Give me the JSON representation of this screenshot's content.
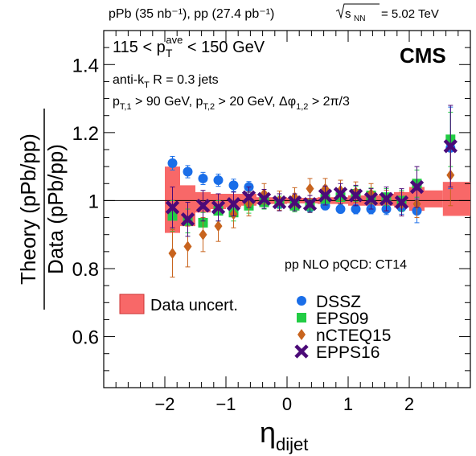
{
  "header": {
    "lumi_left": "pPb (35 nb⁻¹), pp (27.4 pb⁻¹)",
    "energy_sqrt": "s",
    "energy_sub": "NN",
    "energy_value": " = 5.02 TeV"
  },
  "annotations": {
    "experiment": "CMS",
    "kin_range_pre": "115 < p",
    "kin_range_sub": "T",
    "kin_range_sup": "ave",
    "kin_range_post": " < 150 GeV",
    "jets_pre": "anti-k",
    "jets_sub": "T",
    "jets_post": " R = 0.3 jets",
    "cuts_p1": "p",
    "cuts_p1_sub": "T,1",
    "cuts_mid": " > 90 GeV, p",
    "cuts_p2_sub": "T,2",
    "cuts_mid2": " > 20 GeV, Δφ",
    "cuts_phi_sub": "1,2",
    "cuts_end": " > 2π/3",
    "theory_note": "pp NLO pQCD: CT14"
  },
  "chart_data": {
    "type": "scatter",
    "ylabel_top": "Theory (pPb/pp)",
    "ylabel_bottom": "Data (pPb/pp)",
    "xlabel_main": "η",
    "xlabel_sub": "dijet",
    "xlim": [
      -3.0,
      3.0
    ],
    "ylim": [
      0.45,
      1.5
    ],
    "xticks": [
      -2,
      -1,
      0,
      1,
      2
    ],
    "xtick_labels": [
      "−2",
      "−1",
      "0",
      "1",
      "2"
    ],
    "yticks": [
      0.6,
      0.8,
      1.0,
      1.2,
      1.4
    ],
    "ytick_labels": [
      "0.6",
      "0.8",
      "1",
      "1.2",
      "1.4"
    ],
    "reference_line": 1.0,
    "uncertainty": {
      "name": "Data uncert.",
      "color": "#f86868",
      "bins": [
        {
          "x": [
            -2.0,
            -1.75
          ],
          "low": 0.905,
          "high": 1.1
        },
        {
          "x": [
            -1.75,
            -1.5
          ],
          "low": 0.925,
          "high": 1.045
        },
        {
          "x": [
            -1.5,
            -1.25
          ],
          "low": 0.965,
          "high": 1.025
        },
        {
          "x": [
            -1.25,
            -1.0
          ],
          "low": 0.975,
          "high": 1.02
        },
        {
          "x": [
            -1.0,
            -0.75
          ],
          "low": 0.98,
          "high": 1.02
        },
        {
          "x": [
            -0.75,
            -0.5
          ],
          "low": 0.985,
          "high": 1.02
        },
        {
          "x": [
            -0.5,
            -0.25
          ],
          "low": 0.99,
          "high": 1.01
        },
        {
          "x": [
            -0.25,
            0.0
          ],
          "low": 0.99,
          "high": 1.01
        },
        {
          "x": [
            0.0,
            0.25
          ],
          "low": 0.992,
          "high": 1.008
        },
        {
          "x": [
            0.25,
            0.5
          ],
          "low": 0.992,
          "high": 1.008
        },
        {
          "x": [
            0.5,
            0.75
          ],
          "low": 0.99,
          "high": 1.01
        },
        {
          "x": [
            0.75,
            1.0
          ],
          "low": 0.99,
          "high": 1.01
        },
        {
          "x": [
            1.0,
            1.25
          ],
          "low": 0.985,
          "high": 1.015
        },
        {
          "x": [
            1.25,
            1.5
          ],
          "low": 0.985,
          "high": 1.015
        },
        {
          "x": [
            1.5,
            1.75
          ],
          "low": 0.985,
          "high": 1.02
        },
        {
          "x": [
            1.75,
            2.0
          ],
          "low": 0.98,
          "high": 1.025
        },
        {
          "x": [
            2.0,
            2.25
          ],
          "low": 0.97,
          "high": 1.04
        },
        {
          "x": [
            2.25,
            2.55
          ],
          "low": 0.98,
          "high": 1.03
        },
        {
          "x": [
            2.55,
            3.0
          ],
          "low": 0.955,
          "high": 1.055
        }
      ]
    },
    "series": [
      {
        "name": "DSSZ",
        "marker": "circle",
        "color": "#1a6ee8",
        "x": [
          -1.875,
          -1.625,
          -1.375,
          -1.125,
          -0.875,
          -0.625,
          -0.375,
          -0.125,
          0.125,
          0.375,
          0.625,
          0.875,
          1.125,
          1.375,
          1.625,
          1.875,
          2.125,
          2.675
        ],
        "y": [
          1.11,
          1.085,
          1.065,
          1.06,
          1.045,
          1.04,
          1.01,
          0.99,
          0.995,
          0.98,
          0.985,
          0.975,
          0.975,
          0.975,
          0.975,
          0.98,
          0.97,
          1.155
        ],
        "err": [
          0.02,
          0.018,
          0.018,
          0.018,
          0.018,
          0.016,
          0.014,
          0.012,
          0.012,
          0.012,
          0.012,
          0.012,
          0.014,
          0.014,
          0.016,
          0.02,
          0.035,
          0.12
        ]
      },
      {
        "name": "EPS09",
        "marker": "square",
        "color": "#22cc44",
        "x": [
          -1.875,
          -1.625,
          -1.375,
          -1.125,
          -0.875,
          -0.625,
          -0.375,
          -0.125,
          0.125,
          0.375,
          0.625,
          0.875,
          1.125,
          1.375,
          1.625,
          1.875,
          2.125,
          2.675
        ],
        "y": [
          0.955,
          0.94,
          0.935,
          0.97,
          0.965,
          0.985,
          0.995,
          0.995,
          0.985,
          0.985,
          1.005,
          1.01,
          1.02,
          1.015,
          1.01,
          1.0,
          1.05,
          1.18
        ],
        "err": [
          0.045,
          0.035,
          0.03,
          0.03,
          0.025,
          0.022,
          0.02,
          0.018,
          0.018,
          0.018,
          0.018,
          0.02,
          0.022,
          0.022,
          0.025,
          0.03,
          0.04,
          0.08
        ]
      },
      {
        "name": "nCTEQ15",
        "marker": "diamond",
        "color": "#c8641e",
        "x": [
          -1.875,
          -1.625,
          -1.375,
          -1.125,
          -0.875,
          -0.625,
          -0.375,
          -0.125,
          0.125,
          0.375,
          0.625,
          0.875,
          1.125,
          1.375,
          1.625,
          1.875,
          2.125,
          2.675
        ],
        "y": [
          0.845,
          0.865,
          0.9,
          0.925,
          0.96,
          0.99,
          1.02,
          1.0,
          1.01,
          1.035,
          1.035,
          1.03,
          1.025,
          1.02,
          1.0,
          0.99,
          0.99,
          1.075
        ],
        "err": [
          0.07,
          0.06,
          0.05,
          0.045,
          0.04,
          0.035,
          0.03,
          0.028,
          0.028,
          0.03,
          0.03,
          0.03,
          0.03,
          0.03,
          0.03,
          0.035,
          0.04,
          0.09
        ]
      },
      {
        "name": "EPPS16",
        "marker": "cross",
        "color": "#4b0a78",
        "x": [
          -1.875,
          -1.625,
          -1.375,
          -1.125,
          -0.875,
          -0.625,
          -0.375,
          -0.125,
          0.125,
          0.375,
          0.625,
          0.875,
          1.125,
          1.375,
          1.625,
          1.875,
          2.125,
          2.675
        ],
        "y": [
          0.98,
          0.945,
          0.985,
          0.98,
          0.99,
          1.01,
          1.005,
          0.995,
          0.995,
          0.99,
          1.015,
          1.02,
          1.015,
          1.005,
          1.005,
          0.995,
          1.04,
          1.16
        ],
        "err": [
          0.06,
          0.05,
          0.045,
          0.04,
          0.035,
          0.03,
          0.028,
          0.025,
          0.025,
          0.025,
          0.028,
          0.03,
          0.03,
          0.03,
          0.035,
          0.04,
          0.06,
          0.12
        ]
      }
    ],
    "legend_placement": "bottom-right",
    "uncertainty_legend_placement": "bottom-left"
  }
}
